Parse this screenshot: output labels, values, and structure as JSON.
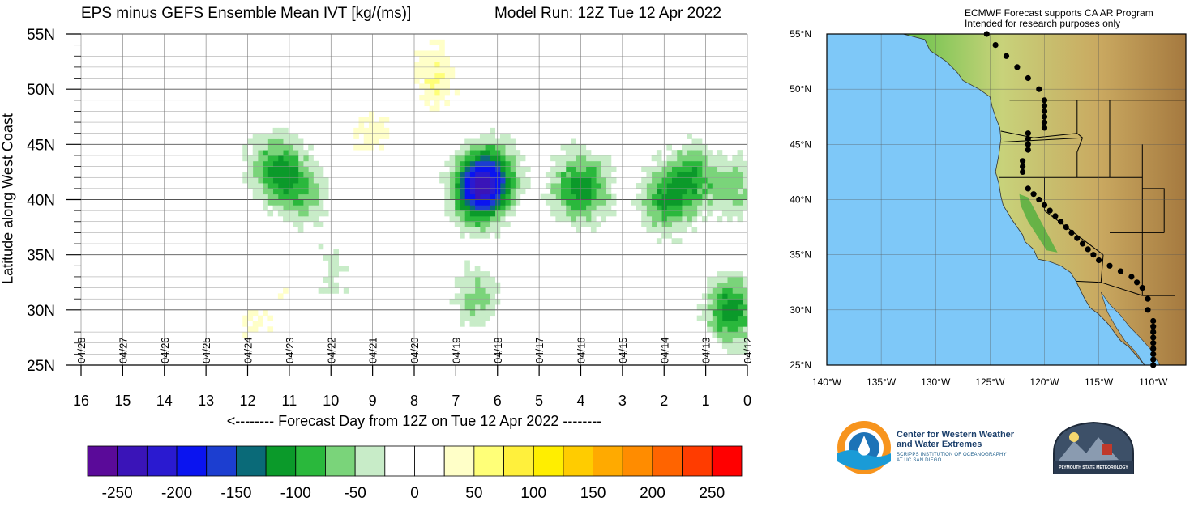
{
  "header": {
    "title_left": "EPS minus GEFS Ensemble Mean IVT [kg/(ms)]",
    "title_right": "Model Run: 12Z Tue 12 Apr 2022"
  },
  "map_note": {
    "line1": "ECMWF Forecast supports CA AR Program",
    "line2": "Intended for research purposes only"
  },
  "logos": {
    "cw3e_line1": "Center for Western Weather",
    "cw3e_line2": "and Water Extremes",
    "cw3e_sub1": "SCRIPPS INSTITUTION OF OCEANOGRAPHY",
    "cw3e_sub2": "AT UC SAN DIEGO",
    "psu": "PLYMOUTH STATE METEOROLOGY"
  },
  "chart_data": [
    {
      "type": "heatmap",
      "title": "EPS minus GEFS Ensemble Mean IVT [kg/(ms)]",
      "subtitle": "Model Run: 12Z Tue 12 Apr 2022",
      "xlabel": "<-------- Forecast Day from 12Z on Tue 12 Apr 2022 --------",
      "ylabel": "Latitude along West Coast",
      "xlim": [
        16,
        0
      ],
      "ylim": [
        25,
        55
      ],
      "x_ticks": [
        "16",
        "15",
        "14",
        "13",
        "12",
        "11",
        "10",
        "9",
        "8",
        "7",
        "6",
        "5",
        "4",
        "3",
        "2",
        "1",
        "0"
      ],
      "y_ticks": [
        "25N",
        "30N",
        "35N",
        "40N",
        "45N",
        "50N",
        "55N"
      ],
      "date_labels": [
        "04/28",
        "04/27",
        "04/26",
        "04/25",
        "04/24",
        "04/23",
        "04/22",
        "04/21",
        "04/20",
        "04/19",
        "04/18",
        "04/17",
        "04/16",
        "04/15",
        "04/14",
        "04/13",
        "04/12"
      ],
      "colorbar": {
        "ticks": [
          "-250",
          "-200",
          "-150",
          "-100",
          "-50",
          "0",
          "50",
          "100",
          "150",
          "200",
          "250"
        ],
        "colors": [
          "#5a0a99",
          "#3a14b8",
          "#2a1ad0",
          "#0a14f0",
          "#1c3ed0",
          "#0a6a78",
          "#0b9a2a",
          "#2ab83c",
          "#7ad47a",
          "#c8ecc8",
          "#ffffff",
          "#ffffff",
          "#ffffc8",
          "#ffff78",
          "#fff03c",
          "#ffee00",
          "#ffcc00",
          "#ffaa00",
          "#ff8c00",
          "#ff6400",
          "#ff3c00",
          "#ff0000"
        ]
      },
      "anomalies": [
        {
          "day": 11.5,
          "lat": 43,
          "value": -60
        },
        {
          "day": 11,
          "lat": 42,
          "value": -80
        },
        {
          "day": 10.5,
          "lat": 40,
          "value": -40
        },
        {
          "day": 10,
          "lat": 33,
          "value": -30
        },
        {
          "day": 9,
          "lat": 46,
          "value": 40
        },
        {
          "day": 7.5,
          "lat": 50,
          "value": 40
        },
        {
          "day": 7.5,
          "lat": 53,
          "value": 30
        },
        {
          "day": 6.5,
          "lat": 41,
          "value": -200
        },
        {
          "day": 6,
          "lat": 42,
          "value": -100
        },
        {
          "day": 6.5,
          "lat": 31,
          "value": -60
        },
        {
          "day": 4.2,
          "lat": 41,
          "value": -80
        },
        {
          "day": 3.7,
          "lat": 41,
          "value": -60
        },
        {
          "day": 2,
          "lat": 40,
          "value": -100
        },
        {
          "day": 1.3,
          "lat": 42,
          "value": -90
        },
        {
          "day": 0.3,
          "lat": 41,
          "value": -60
        },
        {
          "day": 0.4,
          "lat": 30,
          "value": -120
        },
        {
          "day": 11.8,
          "lat": 29,
          "value": 30
        },
        {
          "day": 11,
          "lat": 32,
          "value": 20
        }
      ]
    },
    {
      "type": "map",
      "x_ticks": [
        "140°W",
        "135°W",
        "130°W",
        "125°W",
        "120°W",
        "115°W",
        "110°W"
      ],
      "y_ticks": [
        "25°N",
        "30°N",
        "35°N",
        "40°N",
        "45°N",
        "50°N",
        "55°N"
      ],
      "xlim": [
        -140,
        -107
      ],
      "ylim": [
        25,
        55
      ],
      "coastal_points": [
        [
          -125.3,
          55
        ],
        [
          -124.5,
          54
        ],
        [
          -123.5,
          53
        ],
        [
          -122.5,
          52
        ],
        [
          -121.5,
          51
        ],
        [
          -120.5,
          50
        ],
        [
          -120,
          49
        ],
        [
          -120,
          48.5
        ],
        [
          -120,
          48
        ],
        [
          -120,
          47.5
        ],
        [
          -120,
          47
        ],
        [
          -120,
          46.5
        ],
        [
          -121.5,
          46
        ],
        [
          -121.5,
          45.5
        ],
        [
          -121.5,
          45
        ],
        [
          -121.5,
          44.5
        ],
        [
          -122,
          43.5
        ],
        [
          -122,
          43
        ],
        [
          -122,
          42.5
        ],
        [
          -121.5,
          41
        ],
        [
          -121,
          40.5
        ],
        [
          -120.5,
          40
        ],
        [
          -120,
          39.5
        ],
        [
          -119.5,
          39
        ],
        [
          -119,
          38.5
        ],
        [
          -118.5,
          38
        ],
        [
          -118,
          37.5
        ],
        [
          -117.5,
          37
        ],
        [
          -117,
          36.5
        ],
        [
          -116.5,
          36
        ],
        [
          -116,
          35.5
        ],
        [
          -115.5,
          35
        ],
        [
          -115,
          34.5
        ],
        [
          -114,
          34
        ],
        [
          -113,
          33.5
        ],
        [
          -112,
          33
        ],
        [
          -111.5,
          32.5
        ],
        [
          -111,
          32
        ],
        [
          -110.5,
          31
        ],
        [
          -110.5,
          30
        ],
        [
          -110,
          29
        ],
        [
          -110,
          28.5
        ],
        [
          -110,
          28
        ],
        [
          -110,
          27.5
        ],
        [
          -110,
          27
        ],
        [
          -110,
          26.5
        ],
        [
          -110,
          26
        ],
        [
          -110,
          25.5
        ],
        [
          -110,
          25
        ]
      ]
    }
  ]
}
